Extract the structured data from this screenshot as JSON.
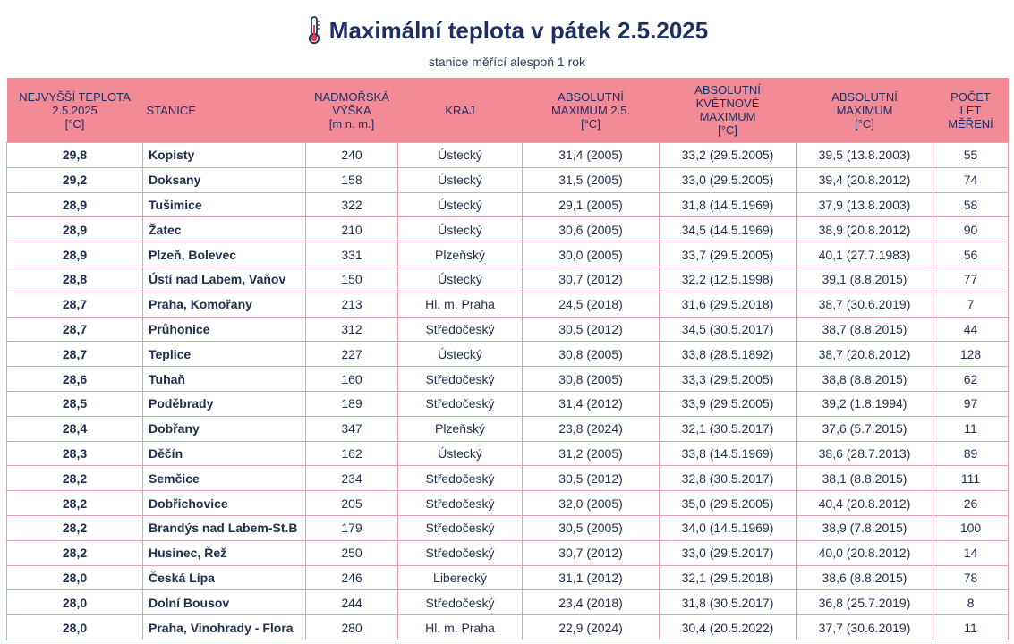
{
  "title": "Maximální teplota v pátek 2.5.2025",
  "subtitle": "stanice měřící alespoň 1 rok",
  "icons": {
    "title_icon": "thermometer-icon"
  },
  "colors": {
    "header_bg": "#f28b95",
    "title": "#1e2f63",
    "border": "#e7a2a9"
  },
  "columns": [
    "NEJVYŠŠÍ TEPLOTA\n2.5.2025\n[°C]",
    "STANICE",
    "NADMOŘSKÁ\nVÝŠKA\n[m n. m.]",
    "KRAJ",
    "ABSOLUTNÍ\nMAXIMUM 2.5.\n[°C]",
    "ABSOLUTNÍ\nKVĚTNOVÉ\nMAXIMUM\n[°C]",
    "ABSOLUTNÍ\nMAXIMUM\n[°C]",
    "POČET\nLET\nMĚŘENÍ"
  ],
  "rows": [
    [
      "29,8",
      "Kopisty",
      "240",
      "Ústecký",
      "31,4 (2005)",
      "33,2 (29.5.2005)",
      "39,5 (13.8.2003)",
      "55"
    ],
    [
      "29,2",
      "Doksany",
      "158",
      "Ústecký",
      "31,5 (2005)",
      "33,0 (29.5.2005)",
      "39,4 (20.8.2012)",
      "74"
    ],
    [
      "28,9",
      "Tušimice",
      "322",
      "Ústecký",
      "29,1 (2005)",
      "31,8 (14.5.1969)",
      "37,9 (13.8.2003)",
      "58"
    ],
    [
      "28,9",
      "Žatec",
      "210",
      "Ústecký",
      "30,6 (2005)",
      "34,5 (14.5.1969)",
      "38,9 (20.8.2012)",
      "90"
    ],
    [
      "28,9",
      "Plzeň, Bolevec",
      "331",
      "Plzeňský",
      "30,0 (2005)",
      "33,7 (29.5.2005)",
      "40,1 (27.7.1983)",
      "56"
    ],
    [
      "28,8",
      "Ústí nad Labem, Vaňov",
      "150",
      "Ústecký",
      "30,7 (2012)",
      "32,2 (12.5.1998)",
      "39,1 (8.8.2015)",
      "77"
    ],
    [
      "28,7",
      "Praha, Komořany",
      "213",
      "Hl. m. Praha",
      "24,5 (2018)",
      "31,6 (29.5.2018)",
      "38,7 (30.6.2019)",
      "7"
    ],
    [
      "28,7",
      "Průhonice",
      "312",
      "Středočeský",
      "30,5 (2012)",
      "34,5 (30.5.2017)",
      "38,7 (8.8.2015)",
      "44"
    ],
    [
      "28,7",
      "Teplice",
      "227",
      "Ústecký",
      "30,8 (2005)",
      "33,8 (28.5.1892)",
      "38,7 (20.8.2012)",
      "128"
    ],
    [
      "28,6",
      "Tuhaň",
      "160",
      "Středočeský",
      "30,8 (2005)",
      "33,3 (29.5.2005)",
      "38,8 (8.8.2015)",
      "62"
    ],
    [
      "28,5",
      "Poděbrady",
      "189",
      "Středočeský",
      "31,4 (2012)",
      "33,9 (29.5.2005)",
      "39,2 (1.8.1994)",
      "97"
    ],
    [
      "28,4",
      "Dobřany",
      "347",
      "Plzeňský",
      "23,8 (2024)",
      "32,1 (30.5.2017)",
      "37,6 (5.7.2015)",
      "11"
    ],
    [
      "28,3",
      "Děčín",
      "162",
      "Ústecký",
      "31,2 (2005)",
      "33,8 (14.5.1969)",
      "38,6 (28.7.2013)",
      "89"
    ],
    [
      "28,2",
      "Semčice",
      "234",
      "Středočeský",
      "30,5 (2012)",
      "32,8 (30.5.2017)",
      "38,1 (8.8.2015)",
      "111"
    ],
    [
      "28,2",
      "Dobřichovice",
      "205",
      "Středočeský",
      "32,0 (2005)",
      "35,0 (29.5.2005)",
      "40,4 (20.8.2012)",
      "26"
    ],
    [
      "28,2",
      "Brandýs nad Labem-St.B",
      "179",
      "Středočeský",
      "30,5 (2005)",
      "34,0 (14.5.1969)",
      "38,9 (7.8.2015)",
      "100"
    ],
    [
      "28,2",
      "Husinec, Řež",
      "250",
      "Středočeský",
      "30,7 (2012)",
      "33,0 (29.5.2017)",
      "40,0 (20.8.2012)",
      "14"
    ],
    [
      "28,0",
      "Česká Lípa",
      "246",
      "Liberecký",
      "31,1 (2012)",
      "32,1 (29.5.2018)",
      "38,6 (8.8.2015)",
      "78"
    ],
    [
      "28,0",
      "Dolní Bousov",
      "244",
      "Středočeský",
      "23,4 (2018)",
      "31,8 (30.5.2017)",
      "36,8 (25.7.2019)",
      "8"
    ],
    [
      "28,0",
      "Praha, Vinohrady - Flora",
      "280",
      "Hl. m. Praha",
      "22,9 (2024)",
      "30,4 (20.5.2022)",
      "37,7 (30.6.2019)",
      "11"
    ]
  ]
}
